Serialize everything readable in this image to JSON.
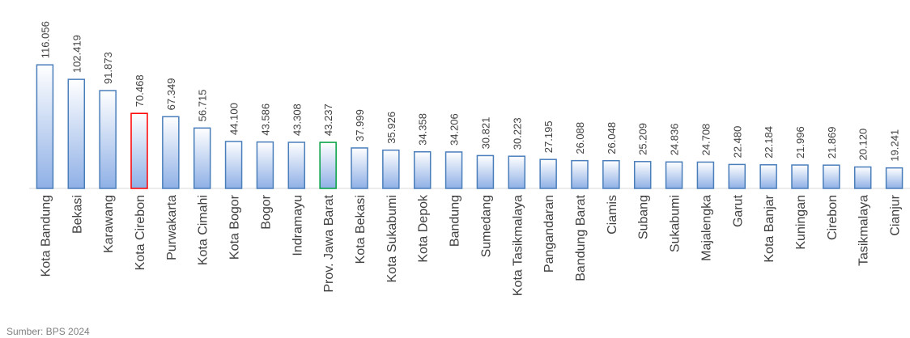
{
  "chart_data": {
    "type": "bar",
    "source": "Sumber: BPS 2024",
    "categories": [
      "Kota Bandung",
      "Bekasi",
      "Karawang",
      "Kota Cirebon",
      "Purwakarta",
      "Kota Cimahi",
      "Kota Bogor",
      "Bogor",
      "Indramayu",
      "Prov. Jawa Barat",
      "Kota Bekasi",
      "Kota Sukabumi",
      "Kota Depok",
      "Bandung",
      "Sumedang",
      "Kota Tasikmalaya",
      "Pangandaran",
      "Bandung Barat",
      "Ciamis",
      "Subang",
      "Sukabumi",
      "Majalengka",
      "Garut",
      "Kota Banjar",
      "Kuningan",
      "Cirebon",
      "Tasikmalaya",
      "Cianjur"
    ],
    "values": [
      116.056,
      102.419,
      91.873,
      70.468,
      67.349,
      56.715,
      44.1,
      43.586,
      43.308,
      43.237,
      37.999,
      35.926,
      34.358,
      34.206,
      30.821,
      30.223,
      27.195,
      26.088,
      26.048,
      25.209,
      24.836,
      24.708,
      22.48,
      22.184,
      21.996,
      21.869,
      20.12,
      19.241
    ],
    "value_labels": [
      "116.056",
      "102.419",
      "91.873",
      "70.468",
      "67.349",
      "56.715",
      "44.100",
      "43.586",
      "43.308",
      "43.237",
      "37.999",
      "35.926",
      "34.358",
      "34.206",
      "30.821",
      "30.223",
      "27.195",
      "26.088",
      "26.048",
      "25.209",
      "24.836",
      "24.708",
      "22.480",
      "22.184",
      "21.996",
      "21.869",
      "20.120",
      "19.241"
    ],
    "color": "#8fb0e6",
    "edge_color": "#4a7ebb",
    "highlight_edges": {
      "Kota Cirebon": "#ff0000",
      "Prov. Jawa Barat": "#00a040"
    },
    "ylim": [
      0,
      120
    ]
  }
}
